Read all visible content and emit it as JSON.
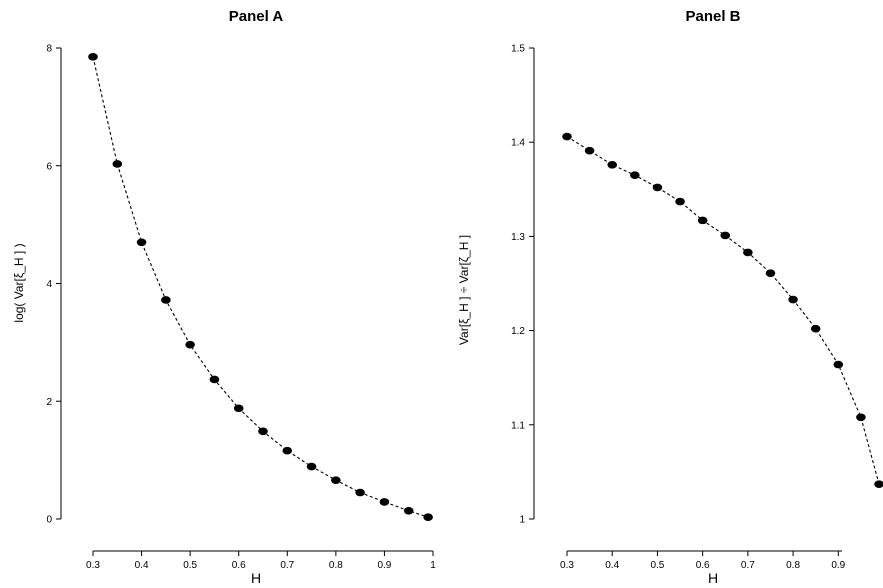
{
  "chart_data": [
    {
      "type": "line",
      "title": "Panel A",
      "xlabel": "H",
      "ylabel": "log( Var[ξ_H ] )",
      "x": [
        0.3,
        0.35,
        0.4,
        0.45,
        0.5,
        0.55,
        0.6,
        0.65,
        0.7,
        0.75,
        0.8,
        0.85,
        0.9,
        0.95,
        0.99
      ],
      "series": [
        {
          "values": [
            7.85,
            6.03,
            4.7,
            3.72,
            2.96,
            2.37,
            1.88,
            1.49,
            1.16,
            0.89,
            0.66,
            0.45,
            0.29,
            0.14,
            0.03
          ]
        }
      ],
      "xlim": [
        0.3,
        1.0
      ],
      "ylim": [
        0,
        8
      ],
      "xticks": [
        0.3,
        0.4,
        0.5,
        0.6,
        0.7,
        0.8,
        0.9,
        1
      ],
      "xtick_labels": [
        "0.3",
        "0.4",
        "0.5",
        "0.6",
        "0.7",
        "0.8",
        "0.9",
        "1"
      ],
      "yticks": [
        0,
        2,
        4,
        6,
        8
      ],
      "ytick_labels": [
        "0",
        "2",
        "4",
        "6",
        "8"
      ],
      "grid": false,
      "legend": "none",
      "line_style": "dashed",
      "marker": "filled-circle"
    },
    {
      "type": "line",
      "title": "Panel B",
      "xlabel": "H",
      "ylabel": "Var[ξ_H ] ÷ Var[ζ_H ]",
      "x": [
        0.3,
        0.35,
        0.4,
        0.45,
        0.5,
        0.55,
        0.6,
        0.65,
        0.7,
        0.75,
        0.8,
        0.85,
        0.9,
        0.95,
        0.99
      ],
      "series": [
        {
          "values": [
            1.406,
            1.391,
            1.376,
            1.365,
            1.352,
            1.337,
            1.317,
            1.301,
            1.283,
            1.261,
            1.233,
            1.202,
            1.164,
            1.108,
            1.037
          ]
        }
      ],
      "xlim": [
        0.3,
        0.99
      ],
      "ylim": [
        1.0,
        1.5
      ],
      "xticks": [
        0.3,
        0.4,
        0.5,
        0.6,
        0.7,
        0.8,
        0.9
      ],
      "xtick_labels": [
        "0.3",
        "0.4",
        "0.5",
        "0.6",
        "0.7",
        "0.8",
        "0.9"
      ],
      "yticks": [
        1.0,
        1.1,
        1.2,
        1.3,
        1.4,
        1.5
      ],
      "ytick_labels": [
        "1",
        "1.1",
        "1.2",
        "1.3",
        "1.4",
        "1.5"
      ],
      "grid": false,
      "legend": "none",
      "line_style": "dashed",
      "marker": "filled-circle"
    }
  ]
}
